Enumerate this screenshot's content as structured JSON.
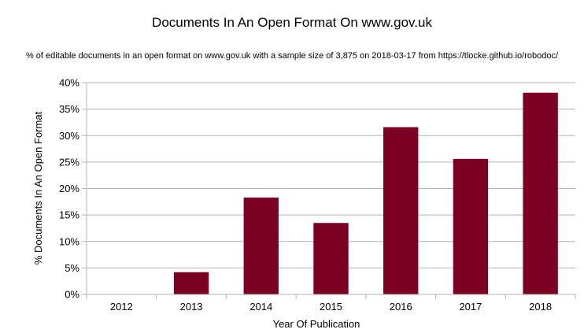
{
  "chart_data": {
    "type": "bar",
    "title": "Documents In An Open Format On www.gov.uk",
    "subtitle": "% of editable documents in an open format on www.gov.uk with a sample size of 3,875 on 2018-03-17 from https://tlocke.github.io/robodoc/",
    "xlabel": "Year Of Publication",
    "ylabel": "% Documents In An Open Format",
    "categories": [
      "2012",
      "2013",
      "2014",
      "2015",
      "2016",
      "2017",
      "2018"
    ],
    "values": [
      0,
      4.2,
      18.3,
      13.5,
      31.6,
      25.6,
      38.1
    ],
    "ylim": [
      0,
      40
    ],
    "yticks": [
      0,
      5,
      10,
      15,
      20,
      25,
      30,
      35,
      40
    ],
    "ytick_labels": [
      "0%",
      "5%",
      "10%",
      "15%",
      "20%",
      "25%",
      "30%",
      "35%",
      "40%"
    ],
    "grid": true,
    "legend": "none",
    "colors": {
      "bar": "#7b0022",
      "grid": "#b3b3b3",
      "axis": "#b3b3b3"
    }
  }
}
